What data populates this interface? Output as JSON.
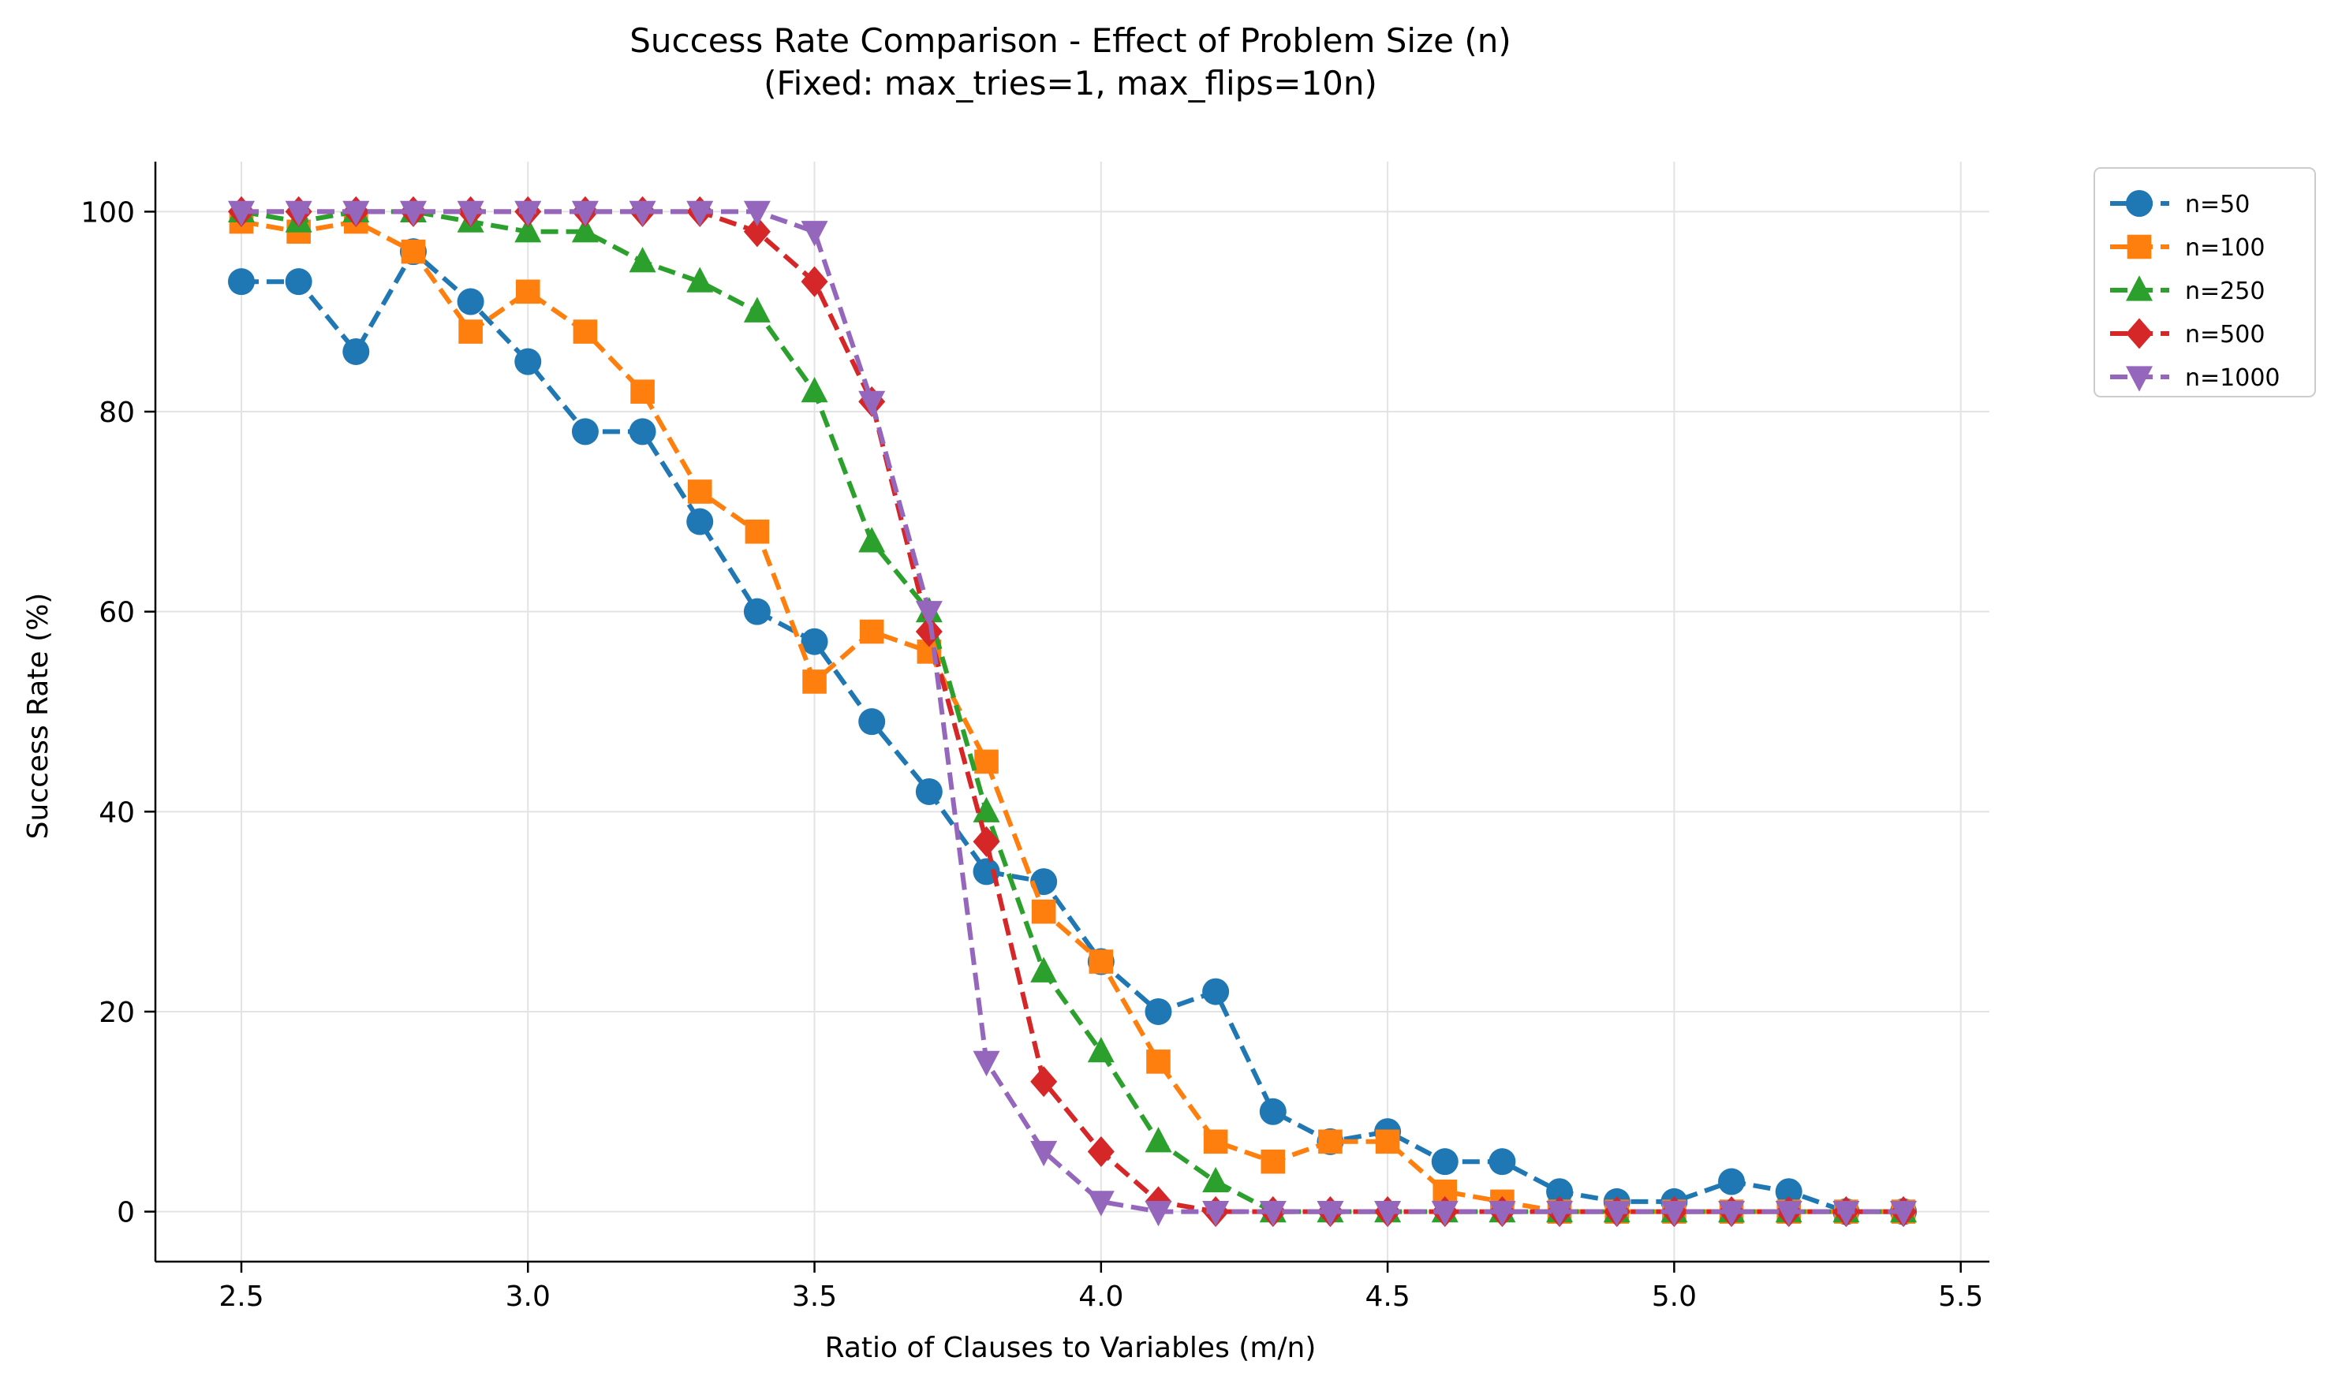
{
  "chart_data": {
    "type": "line",
    "title": "Success Rate Comparison - Effect of Problem Size (n)",
    "subtitle": "(Fixed: max_tries=1, max_flips=10n)",
    "xlabel": "Ratio of Clauses to Variables (m/n)",
    "ylabel": "Success Rate (%)",
    "xlim": [
      2.35,
      5.55
    ],
    "ylim": [
      -5,
      105
    ],
    "xticks": [
      2.5,
      3.0,
      3.5,
      4.0,
      4.5,
      5.0,
      5.5
    ],
    "xtick_labels": [
      "2.5",
      "3.0",
      "3.5",
      "4.0",
      "4.5",
      "5.0",
      "5.5"
    ],
    "yticks": [
      0,
      20,
      40,
      60,
      80,
      100
    ],
    "ytick_labels": [
      "0",
      "20",
      "40",
      "60",
      "80",
      "100"
    ],
    "grid": true,
    "legend_position": "outside-top-right",
    "x": [
      2.5,
      2.6,
      2.7,
      2.8,
      2.9,
      3.0,
      3.1,
      3.2,
      3.3,
      3.4,
      3.5,
      3.6,
      3.7,
      3.8,
      3.9,
      4.0,
      4.1,
      4.2,
      4.3,
      4.4,
      4.5,
      4.6,
      4.7,
      4.8,
      4.9,
      5.0,
      5.1,
      5.2,
      5.3,
      5.4
    ],
    "series": [
      {
        "name": "n=50",
        "color": "#1f77b4",
        "marker": "circle",
        "values": [
          93,
          93,
          86,
          96,
          91,
          85,
          78,
          78,
          69,
          60,
          57,
          49,
          42,
          34,
          33,
          25,
          20,
          22,
          10,
          7,
          8,
          5,
          5,
          2,
          1,
          1,
          3,
          2,
          0,
          0
        ]
      },
      {
        "name": "n=100",
        "color": "#ff7f0e",
        "marker": "square",
        "values": [
          99,
          98,
          99,
          96,
          88,
          92,
          88,
          82,
          72,
          68,
          53,
          58,
          56,
          45,
          30,
          25,
          15,
          7,
          5,
          7,
          7,
          2,
          1,
          0,
          0,
          0,
          0,
          0,
          0,
          0
        ]
      },
      {
        "name": "n=250",
        "color": "#2ca02c",
        "marker": "triangle-up",
        "values": [
          100,
          99,
          100,
          100,
          99,
          98,
          98,
          95,
          93,
          90,
          82,
          67,
          60,
          40,
          24,
          16,
          7,
          3,
          0,
          0,
          0,
          0,
          0,
          0,
          0,
          0,
          0,
          0,
          0,
          0
        ]
      },
      {
        "name": "n=500",
        "color": "#d62728",
        "marker": "diamond",
        "values": [
          100,
          100,
          100,
          100,
          100,
          100,
          100,
          100,
          100,
          98,
          93,
          81,
          58,
          37,
          13,
          6,
          1,
          0,
          0,
          0,
          0,
          0,
          0,
          0,
          0,
          0,
          0,
          0,
          0,
          0
        ]
      },
      {
        "name": "n=1000",
        "color": "#9467bd",
        "marker": "triangle-down",
        "values": [
          100,
          100,
          100,
          100,
          100,
          100,
          100,
          100,
          100,
          100,
          98,
          81,
          60,
          15,
          6,
          1,
          0,
          0,
          0,
          0,
          0,
          0,
          0,
          0,
          0,
          0,
          0,
          0,
          0,
          0
        ]
      }
    ]
  }
}
